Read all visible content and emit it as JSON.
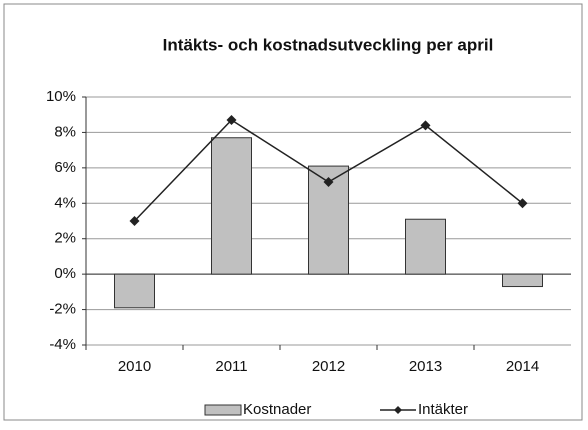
{
  "chart_data": {
    "type": "bar",
    "title": "Intäkts- och kostnadsutveckling per april",
    "categories": [
      "2010",
      "2011",
      "2012",
      "2013",
      "2014"
    ],
    "series": [
      {
        "name": "Kostnader",
        "type": "bar",
        "color": "#c0c0c0",
        "values": [
          -1.9,
          7.7,
          6.1,
          3.1,
          -0.7
        ]
      },
      {
        "name": "Intäkter",
        "type": "line",
        "color": "#222222",
        "values": [
          3.0,
          8.7,
          5.2,
          8.4,
          4.0
        ]
      }
    ],
    "ylim": [
      -4,
      10
    ],
    "yticks": [
      {
        "value": -4,
        "label": "-4%"
      },
      {
        "value": -2,
        "label": "-2%"
      },
      {
        "value": 0,
        "label": "0%"
      },
      {
        "value": 2,
        "label": "2%"
      },
      {
        "value": 4,
        "label": "4%"
      },
      {
        "value": 6,
        "label": "6%"
      },
      {
        "value": 8,
        "label": "8%"
      },
      {
        "value": 10,
        "label": "10%"
      }
    ],
    "grid": true,
    "legend": "bottom"
  }
}
